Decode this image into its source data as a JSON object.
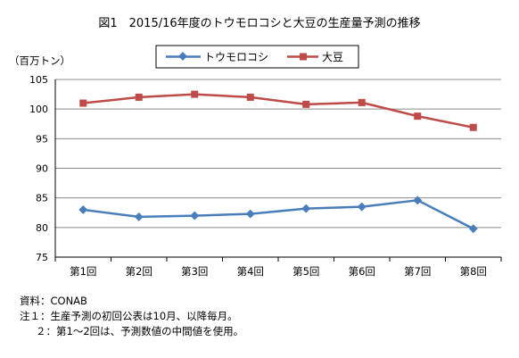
{
  "chart_data": {
    "type": "line",
    "title": "図1　2015/16年度のトウモロコシと大豆の生産量予測の推移",
    "unit_label": "（百万トン）",
    "categories": [
      "第1回",
      "第2回",
      "第3回",
      "第4回",
      "第5回",
      "第6回",
      "第7回",
      "第8回"
    ],
    "ylim": [
      75,
      105
    ],
    "yticks": [
      75,
      80,
      85,
      90,
      95,
      100,
      105
    ],
    "grid": true,
    "legend_position": "top-center",
    "series": [
      {
        "name": "トウモロコシ",
        "color": "#4a7ebb",
        "marker": "diamond",
        "values": [
          83.0,
          81.8,
          82.0,
          82.3,
          83.2,
          83.5,
          84.6,
          79.8
        ]
      },
      {
        "name": "大豆",
        "color": "#be4b48",
        "marker": "square",
        "values": [
          101.0,
          102.0,
          102.5,
          102.0,
          100.8,
          101.1,
          98.8,
          96.9
        ]
      }
    ]
  },
  "notes": {
    "source": "資料：CONAB",
    "note1": "注１：生産予測の初回公表は10月、以降毎月。",
    "note2": "２：第1～2回は、予測数値の中間値を使用。"
  }
}
